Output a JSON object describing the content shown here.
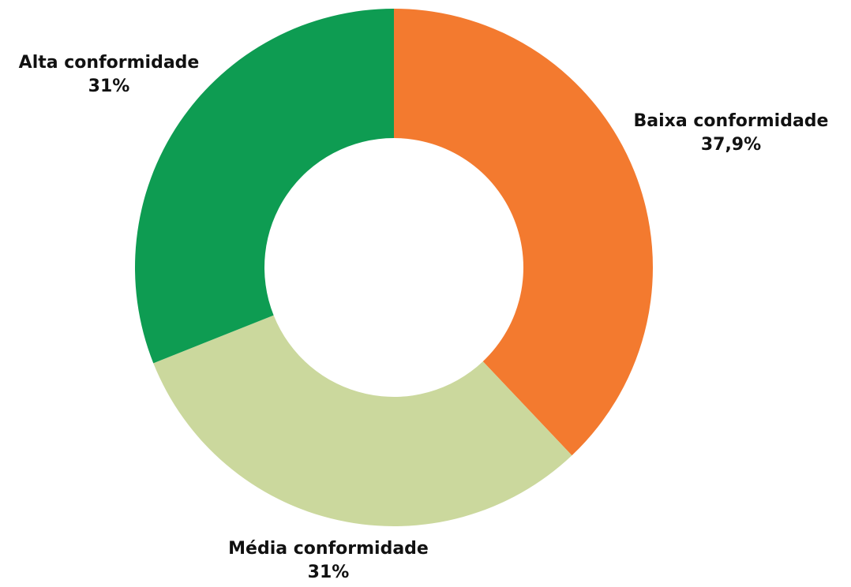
{
  "chart_data": {
    "type": "pie",
    "donut": true,
    "slices": [
      {
        "label": "Baixa conformidade",
        "value": 37.9,
        "value_text": "37,9%",
        "color": "#f37a2f"
      },
      {
        "label": "Média conformidade",
        "value": 31,
        "value_text": "31%",
        "color": "#cbd89d"
      },
      {
        "label": "Alta conformidade",
        "value": 31,
        "value_text": "31%",
        "color": "#0e9c52"
      }
    ],
    "start": "12 o'clock",
    "direction": "clockwise",
    "legend": "none",
    "title": ""
  }
}
